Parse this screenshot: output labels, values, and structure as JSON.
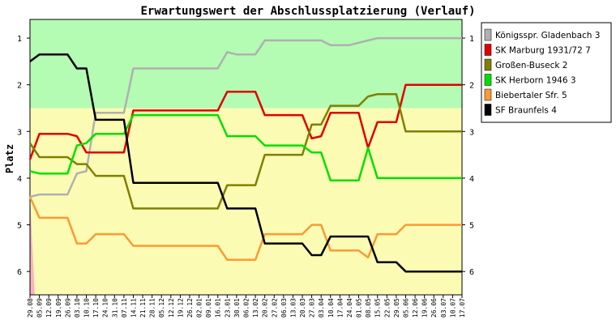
{
  "chart_data": {
    "type": "line",
    "title": "Erwartungswert der Abschlussplatzierung (Verlauf)",
    "ylabel": "Platz",
    "ylim": [
      0.6,
      6.5
    ],
    "y_ticks": [
      "1",
      "2",
      "3",
      "4",
      "5",
      "6"
    ],
    "zones": [
      {
        "from": 0.6,
        "to": 2.5,
        "color": "#b4fbb4"
      },
      {
        "from": 2.5,
        "to": 6.5,
        "color": "#fbfbb4"
      }
    ],
    "x": [
      "29.08",
      "05.09",
      "12.09",
      "19.09",
      "26.09",
      "03.10",
      "10.10",
      "17.10",
      "24.10",
      "31.10",
      "07.11",
      "14.11",
      "21.11",
      "28.11",
      "05.12",
      "12.12",
      "19.12",
      "26.12",
      "02.01",
      "09.01",
      "16.01",
      "23.01",
      "30.01",
      "06.02",
      "13.02",
      "20.02",
      "27.02",
      "06.03",
      "13.03",
      "20.03",
      "27.03",
      "03.04",
      "10.04",
      "17.04",
      "24.04",
      "01.05",
      "08.05",
      "15.05",
      "22.05",
      "29.05",
      "05.06",
      "12.06",
      "19.06",
      "26.06",
      "03.07",
      "10.07",
      "17.07"
    ],
    "legend_position": "right",
    "series": [
      {
        "name": "Königsspr. Gladenbach 3",
        "color": "#b0b0b0",
        "values": [
          4.4,
          4.35,
          4.35,
          4.35,
          4.35,
          3.9,
          3.85,
          2.6,
          2.6,
          2.6,
          2.6,
          1.65,
          1.65,
          1.65,
          1.65,
          1.65,
          1.65,
          1.65,
          1.65,
          1.65,
          1.65,
          1.3,
          1.35,
          1.35,
          1.35,
          1.05,
          1.05,
          1.05,
          1.05,
          1.05,
          1.05,
          1.05,
          1.15,
          1.15,
          1.15,
          1.1,
          1.05,
          1.0,
          1.0,
          1.0,
          1.0,
          1.0,
          1.0,
          1.0,
          1.0,
          1.0,
          1.0
        ]
      },
      {
        "name": "SK Marburg 1931/72 7",
        "color": "#e00000",
        "values": [
          3.6,
          3.05,
          3.05,
          3.05,
          3.05,
          3.1,
          3.45,
          3.45,
          3.45,
          3.45,
          3.45,
          2.55,
          2.55,
          2.55,
          2.55,
          2.55,
          2.55,
          2.55,
          2.55,
          2.55,
          2.55,
          2.15,
          2.15,
          2.15,
          2.15,
          2.65,
          2.65,
          2.65,
          2.65,
          2.65,
          3.15,
          3.1,
          2.6,
          2.6,
          2.6,
          2.6,
          3.35,
          2.8,
          2.8,
          2.8,
          2.0,
          2.0,
          2.0,
          2.0,
          2.0,
          2.0,
          2.0
        ]
      },
      {
        "name": "Großen-Buseck 2",
        "color": "#808000",
        "values": [
          3.25,
          3.55,
          3.55,
          3.55,
          3.55,
          3.7,
          3.7,
          3.95,
          3.95,
          3.95,
          3.95,
          4.65,
          4.65,
          4.65,
          4.65,
          4.65,
          4.65,
          4.65,
          4.65,
          4.65,
          4.65,
          4.15,
          4.15,
          4.15,
          4.15,
          3.5,
          3.5,
          3.5,
          3.5,
          3.5,
          2.85,
          2.85,
          2.45,
          2.45,
          2.45,
          2.45,
          2.25,
          2.2,
          2.2,
          2.2,
          3.0,
          3.0,
          3.0,
          3.0,
          3.0,
          3.0,
          3.0
        ]
      },
      {
        "name": "SK Herborn 1946 3",
        "color": "#00e000",
        "values": [
          3.85,
          3.9,
          3.9,
          3.9,
          3.9,
          3.3,
          3.25,
          3.05,
          3.05,
          3.05,
          3.05,
          2.65,
          2.65,
          2.65,
          2.65,
          2.65,
          2.65,
          2.65,
          2.65,
          2.65,
          2.65,
          3.1,
          3.1,
          3.1,
          3.1,
          3.3,
          3.3,
          3.3,
          3.3,
          3.3,
          3.45,
          3.45,
          4.05,
          4.05,
          4.05,
          4.05,
          3.35,
          4.0,
          4.0,
          4.0,
          4.0,
          4.0,
          4.0,
          4.0,
          4.0,
          4.0,
          4.0
        ]
      },
      {
        "name": "Biebertaler Sfr. 5",
        "color": "#ff9933",
        "values": [
          4.4,
          4.85,
          4.85,
          4.85,
          4.85,
          5.4,
          5.4,
          5.2,
          5.2,
          5.2,
          5.2,
          5.45,
          5.45,
          5.45,
          5.45,
          5.45,
          5.45,
          5.45,
          5.45,
          5.45,
          5.45,
          5.75,
          5.75,
          5.75,
          5.75,
          5.2,
          5.2,
          5.2,
          5.2,
          5.2,
          5.0,
          5.0,
          5.55,
          5.55,
          5.55,
          5.55,
          5.7,
          5.2,
          5.2,
          5.2,
          5.0,
          5.0,
          5.0,
          5.0,
          5.0,
          5.0,
          5.0
        ]
      },
      {
        "name": "SF Braunfels 4",
        "color": "#000000",
        "values": [
          1.5,
          1.35,
          1.35,
          1.35,
          1.35,
          1.65,
          1.65,
          2.75,
          2.75,
          2.75,
          2.75,
          4.1,
          4.1,
          4.1,
          4.1,
          4.1,
          4.1,
          4.1,
          4.1,
          4.1,
          4.1,
          4.65,
          4.65,
          4.65,
          4.65,
          5.4,
          5.4,
          5.4,
          5.4,
          5.4,
          5.65,
          5.65,
          5.25,
          5.25,
          5.25,
          5.25,
          5.25,
          5.8,
          5.8,
          5.8,
          6.0,
          6.0,
          6.0,
          6.0,
          6.0,
          6.0,
          6.0
        ]
      }
    ],
    "extra_area": {
      "color": "#ffb0c0",
      "points": [
        [
          0,
          4.4
        ],
        [
          0.5,
          6.5
        ]
      ]
    }
  }
}
